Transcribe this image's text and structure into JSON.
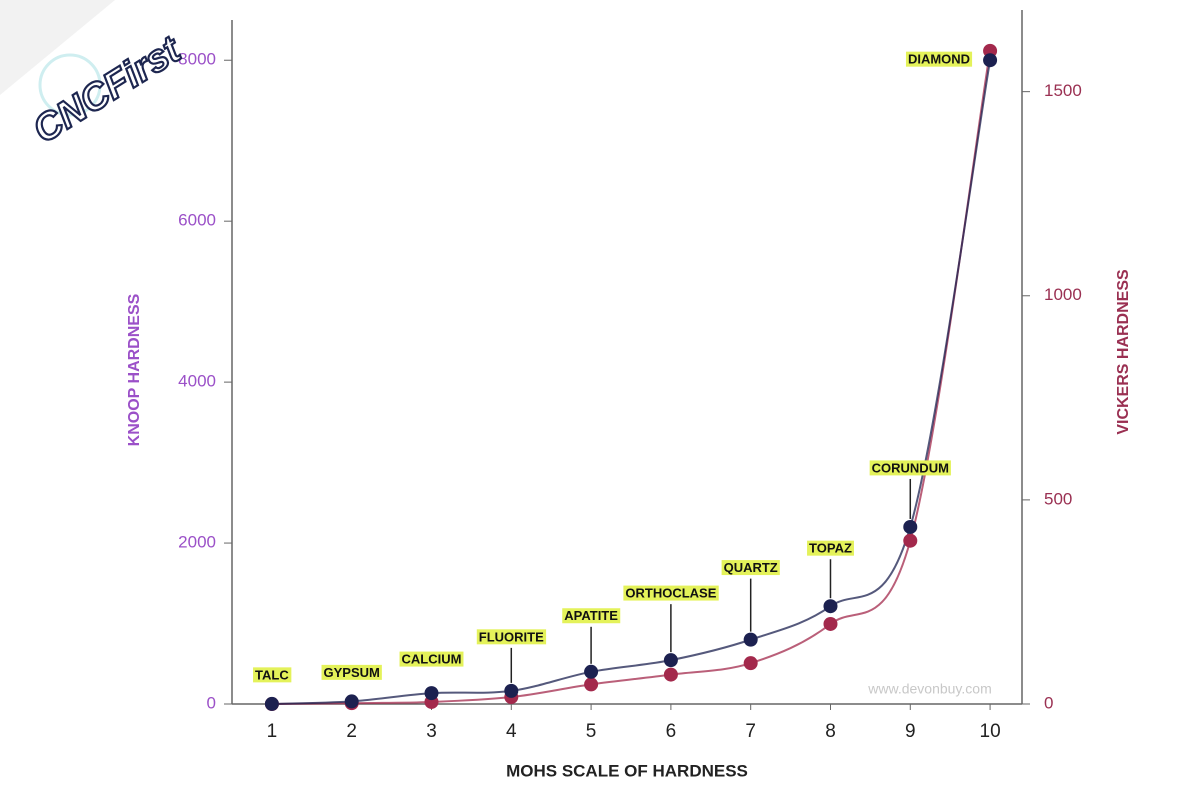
{
  "chart_data": {
    "type": "line",
    "x_label": "MOHS SCALE OF HARDNESS",
    "y_label": "KNOOP HARDNESS",
    "y2_label": "VICKERS HARDNESS",
    "x": [
      1,
      2,
      3,
      4,
      5,
      6,
      7,
      8,
      9,
      10
    ],
    "xlim": [
      0.5,
      10.4
    ],
    "xticks": [
      1,
      2,
      3,
      4,
      5,
      6,
      7,
      8,
      9,
      10
    ],
    "ylim": [
      0,
      8500
    ],
    "yticks": [
      0,
      2000,
      4000,
      6000,
      8000
    ],
    "y2lim": [
      0,
      1700
    ],
    "y2ticks": [
      0,
      500,
      1000,
      1500
    ],
    "y_label_color": "#9b50c8",
    "y2_label_color": "#9a3052",
    "annotations": [
      "TALC",
      "GYPSUM",
      "CALCIUM",
      "FLUORITE",
      "APATITE",
      "ORTHOCLASE",
      "QUARTZ",
      "TOPAZ",
      "CORUNDUM",
      "DIAMOND"
    ],
    "annotation_color": "#e4f25a",
    "series": [
      {
        "color": "#1c2150",
        "values": [
          1,
          32,
          135,
          163,
          400,
          545,
          800,
          1215,
          2200,
          8000
        ]
      },
      {
        "color": "#a3294c",
        "axis": "y2",
        "values": [
          0,
          2,
          5,
          17,
          48,
          72,
          100,
          196,
          400,
          1600
        ]
      }
    ],
    "watermark": "CNCFirst",
    "source": "www.devonbuy.com"
  }
}
